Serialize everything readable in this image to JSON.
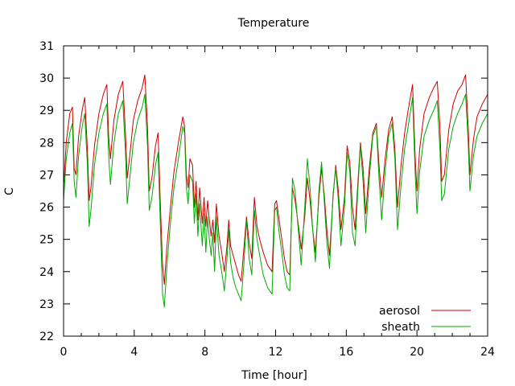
{
  "chart_data": {
    "type": "line",
    "title": "Temperature",
    "xlabel": "Time [hour]",
    "ylabel": "C",
    "xlim": [
      0,
      24
    ],
    "ylim": [
      22,
      31
    ],
    "x_ticks": [
      0,
      4,
      8,
      12,
      16,
      20,
      24
    ],
    "y_ticks": [
      22,
      23,
      24,
      25,
      26,
      27,
      28,
      29,
      30,
      31
    ],
    "grid": false,
    "legend_position": "bottom-right",
    "series": [
      {
        "name": "aerosol",
        "color": "#cc0000",
        "points": [
          [
            0.0,
            26.6
          ],
          [
            0.15,
            28.0
          ],
          [
            0.35,
            28.9
          ],
          [
            0.5,
            29.1
          ],
          [
            0.6,
            27.2
          ],
          [
            0.7,
            27.0
          ],
          [
            0.85,
            28.2
          ],
          [
            1.05,
            29.0
          ],
          [
            1.2,
            29.4
          ],
          [
            1.35,
            27.8
          ],
          [
            1.45,
            26.2
          ],
          [
            1.55,
            26.6
          ],
          [
            1.75,
            27.9
          ],
          [
            2.0,
            28.9
          ],
          [
            2.25,
            29.5
          ],
          [
            2.45,
            29.8
          ],
          [
            2.55,
            28.2
          ],
          [
            2.65,
            27.5
          ],
          [
            2.85,
            28.7
          ],
          [
            3.1,
            29.5
          ],
          [
            3.35,
            29.9
          ],
          [
            3.5,
            28.3
          ],
          [
            3.6,
            26.9
          ],
          [
            3.75,
            27.6
          ],
          [
            3.95,
            28.7
          ],
          [
            4.2,
            29.3
          ],
          [
            4.45,
            29.7
          ],
          [
            4.6,
            30.1
          ],
          [
            4.75,
            28.5
          ],
          [
            4.85,
            26.5
          ],
          [
            5.0,
            26.9
          ],
          [
            5.2,
            27.9
          ],
          [
            5.35,
            28.3
          ],
          [
            5.45,
            26.5
          ],
          [
            5.6,
            24.2
          ],
          [
            5.7,
            23.6
          ],
          [
            5.85,
            24.8
          ],
          [
            6.05,
            26.0
          ],
          [
            6.25,
            27.1
          ],
          [
            6.5,
            28.0
          ],
          [
            6.75,
            28.8
          ],
          [
            6.85,
            28.5
          ],
          [
            6.95,
            27.0
          ],
          [
            7.05,
            26.6
          ],
          [
            7.15,
            27.5
          ],
          [
            7.3,
            27.3
          ],
          [
            7.4,
            26.0
          ],
          [
            7.5,
            26.8
          ],
          [
            7.6,
            25.6
          ],
          [
            7.7,
            26.6
          ],
          [
            7.85,
            25.5
          ],
          [
            7.95,
            26.3
          ],
          [
            8.05,
            25.4
          ],
          [
            8.15,
            26.2
          ],
          [
            8.25,
            25.6
          ],
          [
            8.35,
            25.1
          ],
          [
            8.45,
            25.6
          ],
          [
            8.55,
            24.9
          ],
          [
            8.65,
            26.1
          ],
          [
            8.8,
            25.1
          ],
          [
            8.95,
            24.6
          ],
          [
            9.1,
            24.0
          ],
          [
            9.25,
            24.8
          ],
          [
            9.35,
            25.6
          ],
          [
            9.45,
            24.8
          ],
          [
            9.6,
            24.5
          ],
          [
            9.75,
            24.2
          ],
          [
            9.9,
            23.9
          ],
          [
            10.05,
            23.7
          ],
          [
            10.2,
            24.7
          ],
          [
            10.35,
            25.7
          ],
          [
            10.5,
            24.9
          ],
          [
            10.65,
            24.4
          ],
          [
            10.8,
            26.3
          ],
          [
            10.95,
            25.4
          ],
          [
            11.1,
            25.0
          ],
          [
            11.3,
            24.6
          ],
          [
            11.55,
            24.2
          ],
          [
            11.8,
            24.0
          ],
          [
            11.95,
            26.1
          ],
          [
            12.05,
            26.2
          ],
          [
            12.2,
            25.6
          ],
          [
            12.35,
            25.0
          ],
          [
            12.5,
            24.4
          ],
          [
            12.65,
            24.0
          ],
          [
            12.8,
            23.9
          ],
          [
            12.95,
            26.6
          ],
          [
            13.1,
            26.2
          ],
          [
            13.3,
            25.4
          ],
          [
            13.45,
            24.7
          ],
          [
            13.65,
            25.7
          ],
          [
            13.8,
            26.9
          ],
          [
            13.95,
            26.2
          ],
          [
            14.1,
            25.3
          ],
          [
            14.25,
            24.6
          ],
          [
            14.45,
            26.3
          ],
          [
            14.6,
            27.2
          ],
          [
            14.75,
            26.4
          ],
          [
            14.9,
            25.3
          ],
          [
            15.05,
            24.5
          ],
          [
            15.25,
            26.3
          ],
          [
            15.4,
            27.3
          ],
          [
            15.55,
            26.5
          ],
          [
            15.7,
            25.3
          ],
          [
            15.9,
            26.3
          ],
          [
            16.05,
            27.9
          ],
          [
            16.2,
            27.4
          ],
          [
            16.35,
            26.0
          ],
          [
            16.5,
            25.3
          ],
          [
            16.65,
            26.7
          ],
          [
            16.8,
            28.0
          ],
          [
            16.95,
            27.2
          ],
          [
            17.1,
            25.8
          ],
          [
            17.3,
            27.2
          ],
          [
            17.5,
            28.3
          ],
          [
            17.7,
            28.6
          ],
          [
            17.85,
            27.3
          ],
          [
            18.0,
            26.3
          ],
          [
            18.2,
            27.5
          ],
          [
            18.4,
            28.4
          ],
          [
            18.6,
            28.8
          ],
          [
            18.75,
            27.8
          ],
          [
            18.9,
            26.0
          ],
          [
            19.1,
            27.3
          ],
          [
            19.3,
            28.3
          ],
          [
            19.5,
            29.0
          ],
          [
            19.75,
            29.8
          ],
          [
            19.9,
            27.5
          ],
          [
            20.0,
            26.5
          ],
          [
            20.15,
            27.8
          ],
          [
            20.4,
            28.9
          ],
          [
            20.7,
            29.4
          ],
          [
            20.95,
            29.7
          ],
          [
            21.15,
            29.9
          ],
          [
            21.3,
            28.5
          ],
          [
            21.4,
            26.8
          ],
          [
            21.55,
            27.0
          ],
          [
            21.8,
            28.4
          ],
          [
            22.05,
            29.2
          ],
          [
            22.3,
            29.6
          ],
          [
            22.55,
            29.8
          ],
          [
            22.75,
            30.1
          ],
          [
            22.9,
            28.5
          ],
          [
            23.0,
            27.0
          ],
          [
            23.2,
            28.1
          ],
          [
            23.4,
            28.8
          ],
          [
            23.7,
            29.2
          ],
          [
            24.0,
            29.5
          ]
        ]
      },
      {
        "name": "sheath",
        "color": "#00aa00",
        "points": [
          [
            0.0,
            26.2
          ],
          [
            0.15,
            27.5
          ],
          [
            0.35,
            28.3
          ],
          [
            0.5,
            28.6
          ],
          [
            0.6,
            26.8
          ],
          [
            0.7,
            26.3
          ],
          [
            0.85,
            27.6
          ],
          [
            1.05,
            28.5
          ],
          [
            1.2,
            28.9
          ],
          [
            1.35,
            27.3
          ],
          [
            1.45,
            25.4
          ],
          [
            1.55,
            25.9
          ],
          [
            1.75,
            27.3
          ],
          [
            2.0,
            28.3
          ],
          [
            2.25,
            28.9
          ],
          [
            2.45,
            29.2
          ],
          [
            2.55,
            27.6
          ],
          [
            2.65,
            26.7
          ],
          [
            2.85,
            28.0
          ],
          [
            3.1,
            28.9
          ],
          [
            3.35,
            29.3
          ],
          [
            3.5,
            27.7
          ],
          [
            3.6,
            26.1
          ],
          [
            3.75,
            26.9
          ],
          [
            3.95,
            28.0
          ],
          [
            4.2,
            28.7
          ],
          [
            4.45,
            29.1
          ],
          [
            4.6,
            29.5
          ],
          [
            4.75,
            27.9
          ],
          [
            4.85,
            25.9
          ],
          [
            5.0,
            26.3
          ],
          [
            5.2,
            27.3
          ],
          [
            5.35,
            27.7
          ],
          [
            5.45,
            25.9
          ],
          [
            5.6,
            23.3
          ],
          [
            5.7,
            22.9
          ],
          [
            5.85,
            24.2
          ],
          [
            6.05,
            25.5
          ],
          [
            6.25,
            26.6
          ],
          [
            6.5,
            27.5
          ],
          [
            6.75,
            28.5
          ],
          [
            6.85,
            28.3
          ],
          [
            6.95,
            26.6
          ],
          [
            7.05,
            26.1
          ],
          [
            7.15,
            27.0
          ],
          [
            7.3,
            26.8
          ],
          [
            7.4,
            25.5
          ],
          [
            7.5,
            26.4
          ],
          [
            7.6,
            25.1
          ],
          [
            7.7,
            26.1
          ],
          [
            7.85,
            24.8
          ],
          [
            7.95,
            25.8
          ],
          [
            8.05,
            24.6
          ],
          [
            8.15,
            25.7
          ],
          [
            8.25,
            25.0
          ],
          [
            8.35,
            24.5
          ],
          [
            8.45,
            25.2
          ],
          [
            8.55,
            24.0
          ],
          [
            8.65,
            25.7
          ],
          [
            8.8,
            24.5
          ],
          [
            8.95,
            24.0
          ],
          [
            9.1,
            23.4
          ],
          [
            9.25,
            24.4
          ],
          [
            9.35,
            25.3
          ],
          [
            9.45,
            24.3
          ],
          [
            9.6,
            23.8
          ],
          [
            9.75,
            23.5
          ],
          [
            9.9,
            23.3
          ],
          [
            10.05,
            23.1
          ],
          [
            10.2,
            24.2
          ],
          [
            10.35,
            25.6
          ],
          [
            10.5,
            24.4
          ],
          [
            10.65,
            23.9
          ],
          [
            10.8,
            25.9
          ],
          [
            10.95,
            25.0
          ],
          [
            11.1,
            24.5
          ],
          [
            11.3,
            23.9
          ],
          [
            11.55,
            23.5
          ],
          [
            11.8,
            23.3
          ],
          [
            11.95,
            25.9
          ],
          [
            12.05,
            26.0
          ],
          [
            12.2,
            25.2
          ],
          [
            12.35,
            24.6
          ],
          [
            12.5,
            23.9
          ],
          [
            12.65,
            23.5
          ],
          [
            12.8,
            23.4
          ],
          [
            12.95,
            26.9
          ],
          [
            13.1,
            26.5
          ],
          [
            13.3,
            25.2
          ],
          [
            13.45,
            24.2
          ],
          [
            13.65,
            26.0
          ],
          [
            13.8,
            27.5
          ],
          [
            13.95,
            26.6
          ],
          [
            14.1,
            25.3
          ],
          [
            14.25,
            24.3
          ],
          [
            14.45,
            26.5
          ],
          [
            14.6,
            27.4
          ],
          [
            14.75,
            26.2
          ],
          [
            14.9,
            24.9
          ],
          [
            15.05,
            24.1
          ],
          [
            15.25,
            26.4
          ],
          [
            15.4,
            27.2
          ],
          [
            15.55,
            26.2
          ],
          [
            15.7,
            24.8
          ],
          [
            15.9,
            26.0
          ],
          [
            16.05,
            27.7
          ],
          [
            16.2,
            27.1
          ],
          [
            16.35,
            25.2
          ],
          [
            16.5,
            24.8
          ],
          [
            16.65,
            26.5
          ],
          [
            16.8,
            27.9
          ],
          [
            16.95,
            26.8
          ],
          [
            17.1,
            25.2
          ],
          [
            17.3,
            26.9
          ],
          [
            17.5,
            28.2
          ],
          [
            17.7,
            28.5
          ],
          [
            17.85,
            26.9
          ],
          [
            18.0,
            25.6
          ],
          [
            18.2,
            27.1
          ],
          [
            18.4,
            28.2
          ],
          [
            18.6,
            28.6
          ],
          [
            18.75,
            27.5
          ],
          [
            18.9,
            25.3
          ],
          [
            19.1,
            26.7
          ],
          [
            19.3,
            27.8
          ],
          [
            19.5,
            28.5
          ],
          [
            19.75,
            29.4
          ],
          [
            19.9,
            27.0
          ],
          [
            20.0,
            25.8
          ],
          [
            20.15,
            27.1
          ],
          [
            20.4,
            28.2
          ],
          [
            20.7,
            28.7
          ],
          [
            20.95,
            29.0
          ],
          [
            21.15,
            29.3
          ],
          [
            21.3,
            27.8
          ],
          [
            21.4,
            26.2
          ],
          [
            21.55,
            26.4
          ],
          [
            21.8,
            27.8
          ],
          [
            22.05,
            28.5
          ],
          [
            22.3,
            28.9
          ],
          [
            22.55,
            29.2
          ],
          [
            22.75,
            29.5
          ],
          [
            22.9,
            28.0
          ],
          [
            23.0,
            26.5
          ],
          [
            23.2,
            27.6
          ],
          [
            23.4,
            28.2
          ],
          [
            23.7,
            28.6
          ],
          [
            24.0,
            28.9
          ]
        ]
      }
    ]
  }
}
